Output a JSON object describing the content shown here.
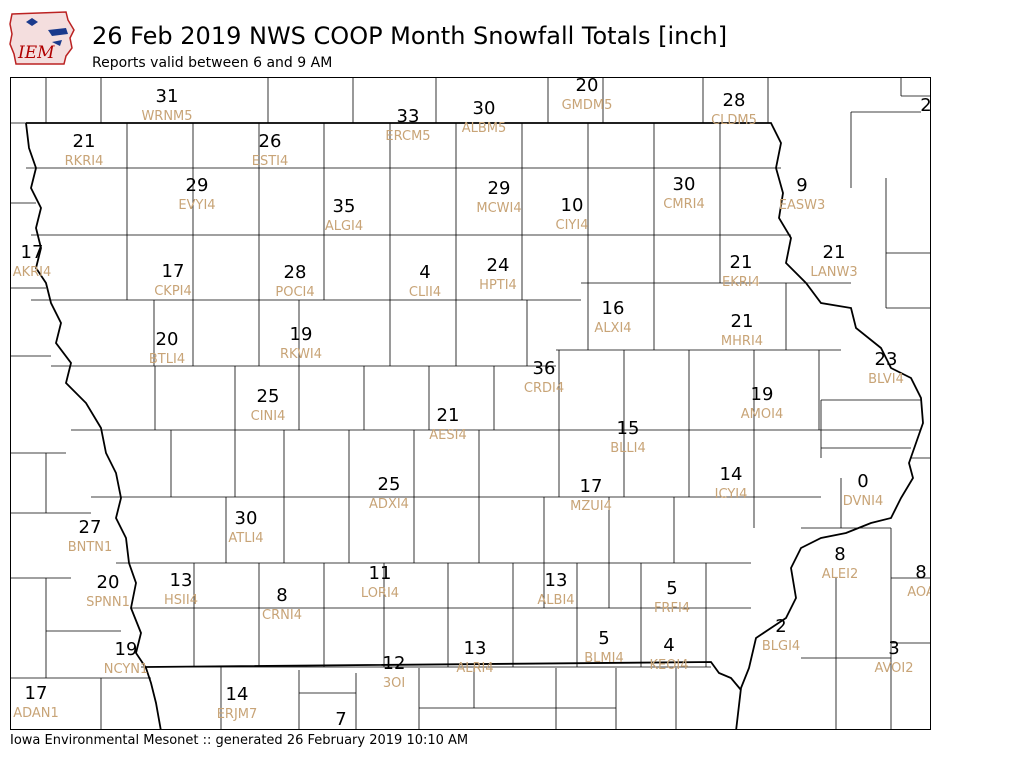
{
  "header": {
    "logo_text": "IEM",
    "title": "26 Feb 2019 NWS COOP Month Snowfall Totals [inch]",
    "subtitle": "Reports valid between 6 and 9 AM"
  },
  "footer": {
    "text": "Iowa Environmental Mesonet :: generated 26 February 2019 10:10 AM"
  },
  "colors": {
    "value_text": "#000000",
    "station_id_text": "#c8a477",
    "boundary": "#000000"
  },
  "stations": [
    {
      "id": "WRNM5",
      "value": "31"
    },
    {
      "id": "ERCM5",
      "value": "33"
    },
    {
      "id": "ALBM5",
      "value": "30"
    },
    {
      "id": "GMDM5",
      "value": "20"
    },
    {
      "id": "CLDM5",
      "value": "28"
    },
    {
      "id": "",
      "value": "2"
    },
    {
      "id": "RKRI4",
      "value": "21"
    },
    {
      "id": "ESTI4",
      "value": "26"
    },
    {
      "id": "EVYI4",
      "value": "29"
    },
    {
      "id": "ALGI4",
      "value": "35"
    },
    {
      "id": "MCWI4",
      "value": "29"
    },
    {
      "id": "CIYI4",
      "value": "10"
    },
    {
      "id": "CMRI4",
      "value": "30"
    },
    {
      "id": "EASW3",
      "value": "9"
    },
    {
      "id": "AKRI4",
      "value": "17"
    },
    {
      "id": "CKPI4",
      "value": "17"
    },
    {
      "id": "POCI4",
      "value": "28"
    },
    {
      "id": "CLII4",
      "value": "4"
    },
    {
      "id": "HPTI4",
      "value": "24"
    },
    {
      "id": "EKRI4",
      "value": "21"
    },
    {
      "id": "LANW3",
      "value": "21"
    },
    {
      "id": "ALXI4",
      "value": "16"
    },
    {
      "id": "MHRI4",
      "value": "21"
    },
    {
      "id": "BTLI4",
      "value": "20"
    },
    {
      "id": "RKWI4",
      "value": "19"
    },
    {
      "id": "CRDI4",
      "value": "36"
    },
    {
      "id": "BLVI4",
      "value": "23"
    },
    {
      "id": "CINI4",
      "value": "25"
    },
    {
      "id": "AMOI4",
      "value": "19"
    },
    {
      "id": "AESI4",
      "value": "21"
    },
    {
      "id": "BLLI4",
      "value": "15"
    },
    {
      "id": "ADXI4",
      "value": "25"
    },
    {
      "id": "MZUI4",
      "value": "17"
    },
    {
      "id": "ICYI4",
      "value": "14"
    },
    {
      "id": "DVNI4",
      "value": "0"
    },
    {
      "id": "ATLI4",
      "value": "30"
    },
    {
      "id": "BNTN1",
      "value": "27"
    },
    {
      "id": "ALEI2",
      "value": "8"
    },
    {
      "id": "AOA",
      "value": "8"
    },
    {
      "id": "SPNN1",
      "value": "20"
    },
    {
      "id": "HSII4",
      "value": "13"
    },
    {
      "id": "LORI4",
      "value": "11"
    },
    {
      "id": "ALBI4",
      "value": "13"
    },
    {
      "id": "FRFI4",
      "value": "5"
    },
    {
      "id": "CRNI4",
      "value": "8"
    },
    {
      "id": "BLMI4",
      "value": "5"
    },
    {
      "id": "KEOI4",
      "value": "4"
    },
    {
      "id": "BLGI4",
      "value": "2"
    },
    {
      "id": "AVOI2",
      "value": "3"
    },
    {
      "id": "NCYN1",
      "value": "19"
    },
    {
      "id": "ALRI4",
      "value": "13"
    },
    {
      "id": "3OI",
      "value": "12"
    },
    {
      "id": "ADAN1",
      "value": "17"
    },
    {
      "id": "ERJM7",
      "value": "14"
    },
    {
      "id": "",
      "value": "7"
    }
  ]
}
